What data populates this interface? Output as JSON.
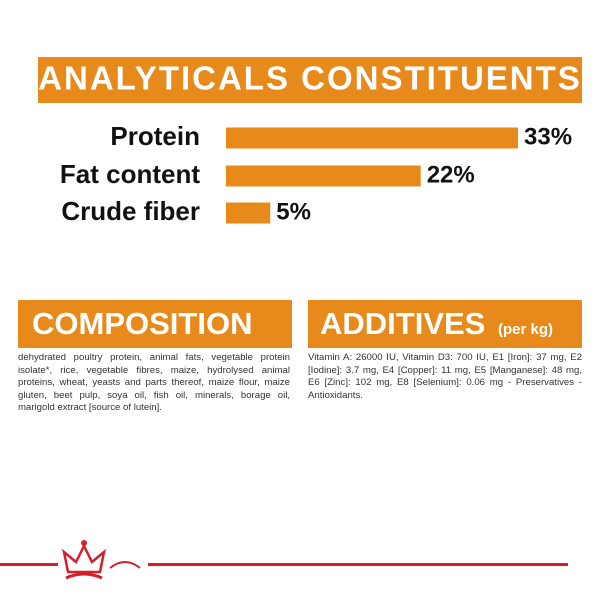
{
  "chart_data": {
    "type": "bar",
    "orientation": "horizontal",
    "title": "ANALYTICALS CONSTITUENTS",
    "categories": [
      "Protein",
      "Fat content",
      "Crude fiber"
    ],
    "values": [
      33,
      22,
      5
    ],
    "value_labels": [
      "33%",
      "22%",
      "5%"
    ],
    "color": "#e88a1b"
  },
  "composition": {
    "title": "COMPOSITION",
    "text": "dehydrated poultry protein, animal fats, vegetable protein isolate*, rice, vegetable fibres, maize, hydrolysed animal proteins, wheat, yeasts and parts thereof, maize flour, maize gluten, beet pulp, soya oil, fish oil, minerals, borage oil, marigold extract [source of lutein]."
  },
  "additives": {
    "title": "ADDITIVES",
    "subtitle": "(per kg)",
    "text": "Vitamin A: 26000 IU, Vitamin D3: 700 IU, E1 [Iron]: 37 mg, E2 [Iodine]: 3.7 mg, E4 [Copper]: 11 mg, E5 [Manganese]: 48 mg, E6 [Zinc]: 102 mg, E8 [Selenium]: 0.06 mg - Preservatives - Antioxidants."
  }
}
